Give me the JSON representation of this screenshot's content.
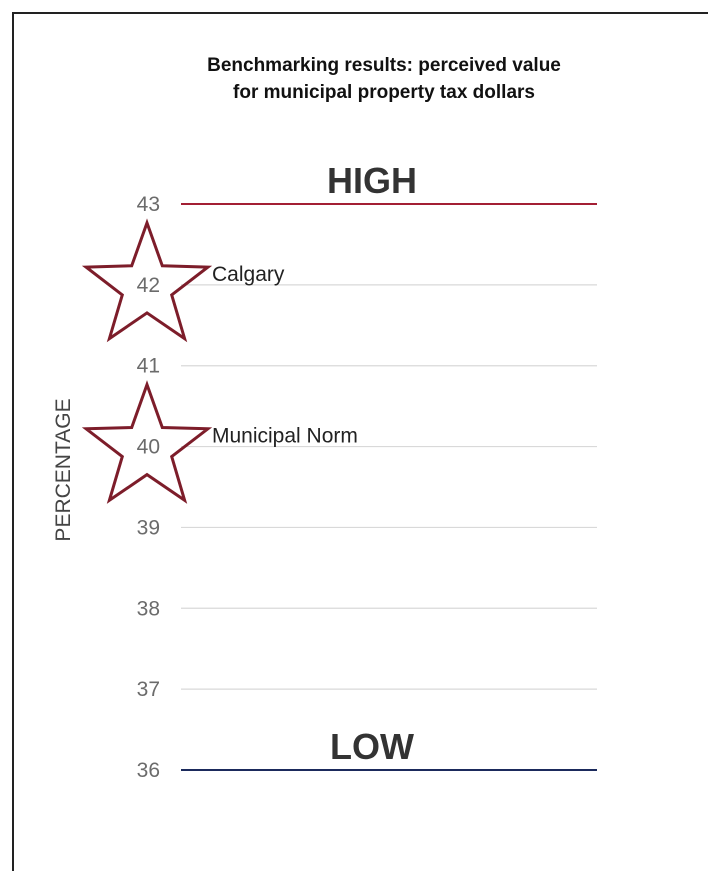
{
  "chart_data": {
    "type": "scatter",
    "title_lines": [
      "Benchmarking results: perceived value",
      "for municipal property tax dollars"
    ],
    "ylabel": "PERCENTAGE",
    "ylim": [
      36,
      43
    ],
    "yticks": [
      43,
      42,
      41,
      40,
      39,
      38,
      37,
      36
    ],
    "grid": true,
    "high_label": "HIGH",
    "low_label": "LOW",
    "high_color": "#a31f34",
    "low_color": "#1b2a5c",
    "grid_color": "#d9d9d9",
    "marker_color": "#7d1d2a",
    "marker": "star",
    "points": [
      {
        "label": "Calgary",
        "y": 42
      },
      {
        "label": "Municipal Norm",
        "y": 40
      }
    ]
  }
}
